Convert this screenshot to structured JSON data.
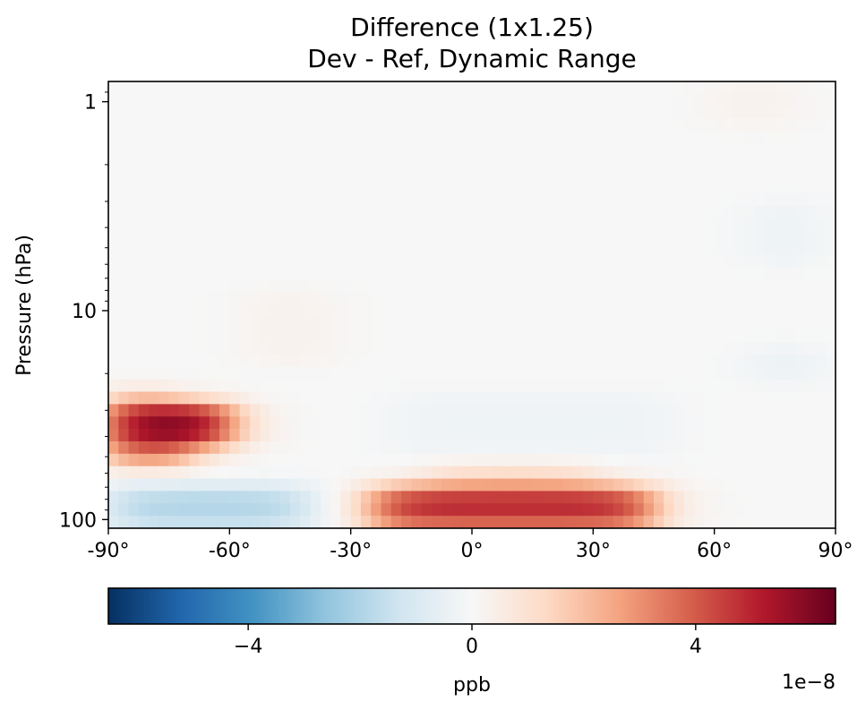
{
  "chart_data": {
    "type": "heatmap",
    "title": "Difference (1x1.25)",
    "subtitle": "Dev - Ref, Dynamic Range",
    "xlabel": "",
    "ylabel": "Pressure (hPa)",
    "x_range": [
      -90,
      90
    ],
    "x_ticks": [
      -90,
      -60,
      -30,
      0,
      30,
      60,
      90
    ],
    "x_tick_labels": [
      "-90°",
      "-60°",
      "-30°",
      "0°",
      "30°",
      "60°",
      "90°"
    ],
    "y_scale": "log",
    "y_inverted": true,
    "y_range": [
      110,
      0.8
    ],
    "y_ticks": [
      1,
      10,
      100
    ],
    "y_tick_labels": [
      "1",
      "10",
      "100"
    ],
    "colormap": "RdBu_r",
    "colorbar": {
      "label": "ppb",
      "orientation": "horizontal",
      "range": [
        -6.5e-08,
        6.5e-08
      ],
      "ticks": [
        -4e-08,
        0,
        4e-08
      ],
      "tick_labels": [
        "−4",
        "0",
        "4"
      ],
      "offset_text": "1e−8"
    },
    "features": [
      {
        "lat_range": [
          -90,
          -60
        ],
        "pressure_range": [
          28,
          44
        ],
        "value_peak": 6.3e-08
      },
      {
        "lat_range": [
          -90,
          -70
        ],
        "pressure_range": [
          44,
          55
        ],
        "value_peak": 3.8e-08
      },
      {
        "lat_range": [
          -90,
          -75
        ],
        "pressure_range": [
          24,
          28
        ],
        "value_peak": 1.5e-08
      },
      {
        "lat_range": [
          -90,
          -40
        ],
        "pressure_range": [
          70,
          110
        ],
        "value_peak": -2e-08
      },
      {
        "lat_range": [
          -25,
          45
        ],
        "pressure_range": [
          70,
          110
        ],
        "value_peak": 5e-08
      },
      {
        "lat_range": [
          -10,
          30
        ],
        "pressure_range": [
          55,
          70
        ],
        "value_peak": 1.2e-08
      },
      {
        "lat_range": [
          70,
          85
        ],
        "pressure_range": [
          3,
          6
        ],
        "value_peak": -4e-09
      },
      {
        "lat_range": [
          70,
          85
        ],
        "pressure_range": [
          15,
          22
        ],
        "value_peak": -5e-09
      },
      {
        "lat_range": [
          -20,
          50
        ],
        "pressure_range": [
          25,
          50
        ],
        "value_peak": -3e-09
      },
      {
        "lat_range": [
          -55,
          -35
        ],
        "pressure_range": [
          8,
          18
        ],
        "value_peak": 3e-09
      },
      {
        "lat_range": [
          60,
          80
        ],
        "pressure_range": [
          0.8,
          1.3
        ],
        "value_peak": 3e-09
      }
    ]
  }
}
